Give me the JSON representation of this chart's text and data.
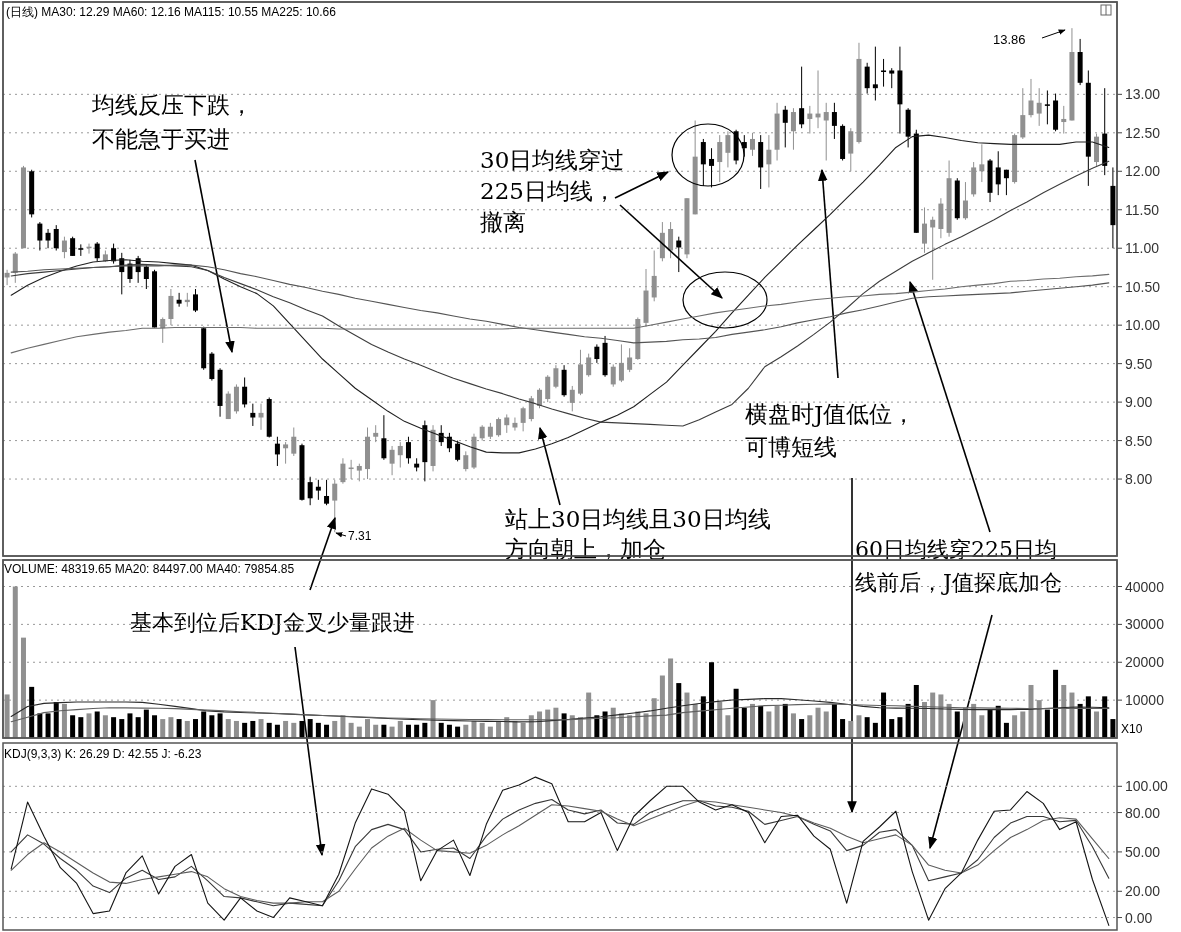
{
  "chart_data": [
    {
      "type": "candlestick",
      "categories": [
        null,
        null,
        null,
        null,
        null,
        null,
        null,
        null,
        null,
        null,
        null,
        null,
        null,
        null,
        null,
        null,
        null,
        null,
        null,
        null,
        null,
        null,
        null,
        null,
        null,
        null,
        null,
        null,
        null,
        null,
        null,
        null,
        null,
        null,
        null,
        null,
        null,
        null,
        null,
        null,
        null,
        null,
        null,
        null,
        null,
        null,
        null,
        null,
        null,
        null,
        null,
        null,
        null,
        null,
        null,
        null,
        null,
        null,
        null,
        null,
        null,
        null,
        null,
        null,
        null,
        null,
        null,
        null,
        null,
        null,
        null,
        null,
        null,
        null,
        null,
        null,
        null,
        null,
        null,
        null,
        null,
        null,
        null,
        null,
        null,
        null,
        null,
        null,
        null,
        null,
        null,
        null,
        null,
        null,
        null,
        null,
        null,
        null,
        null,
        null,
        null,
        null,
        null,
        null,
        null,
        null,
        null,
        null,
        null,
        null,
        null,
        null,
        null,
        null,
        null,
        null,
        null,
        null,
        null,
        null,
        null,
        null,
        null,
        null,
        null,
        null,
        null,
        null,
        null,
        null,
        null,
        null,
        null,
        null,
        null,
        null
      ],
      "ohlc": [
        [
          10.62,
          10.72,
          10.52,
          10.68
        ],
        [
          10.68,
          10.95,
          10.55,
          10.93
        ],
        [
          11.0,
          12.07,
          11.0,
          12.05
        ],
        [
          12.0,
          12.02,
          11.4,
          11.44
        ],
        [
          11.32,
          11.34,
          10.97,
          11.1
        ],
        [
          11.2,
          11.25,
          11.0,
          11.1
        ],
        [
          11.25,
          11.3,
          10.97,
          11.0
        ],
        [
          10.95,
          11.15,
          10.87,
          11.1
        ],
        [
          11.13,
          11.15,
          10.9,
          10.9
        ],
        [
          11.0,
          11.05,
          10.9,
          10.98
        ],
        [
          11.0,
          11.06,
          10.93,
          11.02
        ],
        [
          11.06,
          11.08,
          10.83,
          10.87
        ],
        [
          10.83,
          10.97,
          10.82,
          10.92
        ],
        [
          11.0,
          11.06,
          10.8,
          10.83
        ],
        [
          10.87,
          10.94,
          10.4,
          10.69
        ],
        [
          10.8,
          10.85,
          10.55,
          10.6
        ],
        [
          10.87,
          10.9,
          10.55,
          10.69
        ],
        [
          10.76,
          10.78,
          10.47,
          10.6
        ],
        [
          10.7,
          10.72,
          9.97,
          9.97
        ],
        [
          9.96,
          10.1,
          9.77,
          10.08
        ],
        [
          10.08,
          10.47,
          10.0,
          10.38
        ],
        [
          10.33,
          10.42,
          10.24,
          10.28
        ],
        [
          10.3,
          10.42,
          10.24,
          10.33
        ],
        [
          10.4,
          10.47,
          10.17,
          10.19
        ],
        [
          9.96,
          9.98,
          9.42,
          9.44
        ],
        [
          9.63,
          9.65,
          9.28,
          9.3
        ],
        [
          9.42,
          9.44,
          8.81,
          8.95
        ],
        [
          8.78,
          9.14,
          8.78,
          9.11
        ],
        [
          8.88,
          9.23,
          8.85,
          9.2
        ],
        [
          9.2,
          9.32,
          8.93,
          8.97
        ],
        [
          8.86,
          8.98,
          8.69,
          8.8
        ],
        [
          8.8,
          8.98,
          8.64,
          8.86
        ],
        [
          9.04,
          9.06,
          8.54,
          8.55
        ],
        [
          8.46,
          8.55,
          8.17,
          8.32
        ],
        [
          8.4,
          8.48,
          8.2,
          8.45
        ],
        [
          8.33,
          8.67,
          8.3,
          8.55
        ],
        [
          8.44,
          8.46,
          7.72,
          7.73
        ],
        [
          7.96,
          8.03,
          7.66,
          7.75
        ],
        [
          7.9,
          7.99,
          7.73,
          7.85
        ],
        [
          7.78,
          7.99,
          7.66,
          7.68
        ],
        [
          7.72,
          7.99,
          7.31,
          7.94
        ],
        [
          7.96,
          8.27,
          7.94,
          8.2
        ],
        [
          8.13,
          8.25,
          8.0,
          8.15
        ],
        [
          8.11,
          8.2,
          7.97,
          8.17
        ],
        [
          8.13,
          8.67,
          8.0,
          8.55
        ],
        [
          8.55,
          8.7,
          8.48,
          8.6
        ],
        [
          8.53,
          8.83,
          8.25,
          8.27
        ],
        [
          8.2,
          8.43,
          8.05,
          8.38
        ],
        [
          8.31,
          8.48,
          8.15,
          8.43
        ],
        [
          8.48,
          8.55,
          8.2,
          8.27
        ],
        [
          8.2,
          8.27,
          8.1,
          8.15
        ],
        [
          8.7,
          8.76,
          7.97,
          8.22
        ],
        [
          8.17,
          8.7,
          8.1,
          8.64
        ],
        [
          8.6,
          8.7,
          8.43,
          8.48
        ],
        [
          8.55,
          8.6,
          8.35,
          8.4
        ],
        [
          8.46,
          8.5,
          8.23,
          8.25
        ],
        [
          8.13,
          8.36,
          8.1,
          8.31
        ],
        [
          8.15,
          8.59,
          8.13,
          8.55
        ],
        [
          8.53,
          8.7,
          8.5,
          8.68
        ],
        [
          8.55,
          8.73,
          8.52,
          8.68
        ],
        [
          8.57,
          8.8,
          8.55,
          8.78
        ],
        [
          8.7,
          8.84,
          8.6,
          8.8
        ],
        [
          8.67,
          8.8,
          8.63,
          8.73
        ],
        [
          8.73,
          8.94,
          8.62,
          8.92
        ],
        [
          8.78,
          9.08,
          8.75,
          9.05
        ],
        [
          8.95,
          9.18,
          8.92,
          9.16
        ],
        [
          9.04,
          9.35,
          9.0,
          9.33
        ],
        [
          9.2,
          9.48,
          9.18,
          9.44
        ],
        [
          9.42,
          9.48,
          9.07,
          9.09
        ],
        [
          8.99,
          9.21,
          8.88,
          9.16
        ],
        [
          9.11,
          9.68,
          9.09,
          9.49
        ],
        [
          9.35,
          9.63,
          9.33,
          9.58
        ],
        [
          9.72,
          9.75,
          9.51,
          9.56
        ],
        [
          9.77,
          9.86,
          9.33,
          9.35
        ],
        [
          9.23,
          9.49,
          9.2,
          9.46
        ],
        [
          9.28,
          9.75,
          9.26,
          9.51
        ],
        [
          9.42,
          9.7,
          9.39,
          9.58
        ],
        [
          9.56,
          10.1,
          9.55,
          10.08
        ],
        [
          10.03,
          10.73,
          9.98,
          10.45
        ],
        [
          10.36,
          10.97,
          10.31,
          10.64
        ],
        [
          10.87,
          11.34,
          10.83,
          11.2
        ],
        [
          10.97,
          11.34,
          10.87,
          11.25
        ],
        [
          11.1,
          11.15,
          10.69,
          11.01
        ],
        [
          10.92,
          11.65,
          10.87,
          11.65
        ],
        [
          11.44,
          12.66,
          11.44,
          12.19
        ],
        [
          12.38,
          12.42,
          11.81,
          12.09
        ],
        [
          12.16,
          12.3,
          11.79,
          12.07
        ],
        [
          12.12,
          12.47,
          11.86,
          12.38
        ],
        [
          12.24,
          12.52,
          12.05,
          12.47
        ],
        [
          12.52,
          12.54,
          12.09,
          12.14
        ],
        [
          12.38,
          12.47,
          12.19,
          12.3
        ],
        [
          12.28,
          12.5,
          12.2,
          12.42
        ],
        [
          12.38,
          12.47,
          11.77,
          12.05
        ],
        [
          12.09,
          12.47,
          11.79,
          12.28
        ],
        [
          12.28,
          12.89,
          12.14,
          12.75
        ],
        [
          12.8,
          12.85,
          12.31,
          12.63
        ],
        [
          12.52,
          12.82,
          12.28,
          12.77
        ],
        [
          12.82,
          13.36,
          12.56,
          12.61
        ],
        [
          12.68,
          12.85,
          12.49,
          12.75
        ],
        [
          12.7,
          13.31,
          12.56,
          12.75
        ],
        [
          12.66,
          12.89,
          12.14,
          12.77
        ],
        [
          12.77,
          12.89,
          12.42,
          12.59
        ],
        [
          12.59,
          12.61,
          12.14,
          12.16
        ],
        [
          12.23,
          12.56,
          12.0,
          12.52
        ],
        [
          12.38,
          13.67,
          12.36,
          13.46
        ],
        [
          13.36,
          13.41,
          13.01,
          13.08
        ],
        [
          13.13,
          13.62,
          12.92,
          13.08
        ],
        [
          13.31,
          13.46,
          13.1,
          13.29
        ],
        [
          13.31,
          13.34,
          13.08,
          13.27
        ],
        [
          13.31,
          13.62,
          12.49,
          12.87
        ],
        [
          12.8,
          12.82,
          12.31,
          12.45
        ],
        [
          12.49,
          12.54,
          11.2,
          11.2
        ],
        [
          11.06,
          11.53,
          10.94,
          11.32
        ],
        [
          11.27,
          11.41,
          10.59,
          11.37
        ],
        [
          11.25,
          11.65,
          11.13,
          11.58
        ],
        [
          11.2,
          12.14,
          11.15,
          11.91
        ],
        [
          11.88,
          11.91,
          11.37,
          11.39
        ],
        [
          11.39,
          11.86,
          11.37,
          11.62
        ],
        [
          11.7,
          12.12,
          11.67,
          12.05
        ],
        [
          12.0,
          12.35,
          11.86,
          12.09
        ],
        [
          12.14,
          12.16,
          11.6,
          11.72
        ],
        [
          12.05,
          12.26,
          11.69,
          11.83
        ],
        [
          12.02,
          12.02,
          11.69,
          11.91
        ],
        [
          11.86,
          12.49,
          11.84,
          12.47
        ],
        [
          12.44,
          13.08,
          12.42,
          12.73
        ],
        [
          12.73,
          13.2,
          12.7,
          12.92
        ],
        [
          12.75,
          13.08,
          12.59,
          12.89
        ],
        [
          12.87,
          13.05,
          12.61,
          12.85
        ],
        [
          12.92,
          13.01,
          12.52,
          12.54
        ],
        [
          12.64,
          12.85,
          12.49,
          12.68
        ],
        [
          12.66,
          13.86,
          12.66,
          13.55
        ],
        [
          13.55,
          13.72,
          13.12,
          13.15
        ],
        [
          13.15,
          13.31,
          11.81,
          12.19
        ],
        [
          12.12,
          12.49,
          12.07,
          12.45
        ],
        [
          12.49,
          13.08,
          11.95,
          12.07
        ],
        [
          11.81,
          12.05,
          11.0,
          11.3
        ]
      ],
      "colors": [
        "#909090",
        "#909090",
        "#909090",
        "#000000",
        "#000000",
        "#000000",
        "#000000",
        "#909090",
        "#000000",
        "#000000",
        "#909090",
        "#000000",
        "#909090",
        "#000000",
        "#000000",
        "#000000",
        "#000000",
        "#000000",
        "#000000",
        "#909090",
        "#909090",
        "#000000",
        "#909090",
        "#000000",
        "#000000",
        "#000000",
        "#000000",
        "#909090",
        "#909090",
        "#000000",
        "#000000",
        "#909090",
        "#000000",
        "#000000",
        "#909090",
        "#909090",
        "#000000",
        "#000000",
        "#000000",
        "#000000",
        "#909090",
        "#909090",
        "#909090",
        "#909090",
        "#909090",
        "#909090",
        "#000000",
        "#909090",
        "#909090",
        "#000000",
        "#000000",
        "#000000",
        "#909090",
        "#000000",
        "#000000",
        "#000000",
        "#909090",
        "#909090",
        "#909090",
        "#909090",
        "#909090",
        "#909090",
        "#909090",
        "#909090",
        "#909090",
        "#909090",
        "#909090",
        "#909090",
        "#000000",
        "#909090",
        "#909090",
        "#909090",
        "#000000",
        "#000000",
        "#909090",
        "#909090",
        "#909090",
        "#909090",
        "#909090",
        "#909090",
        "#909090",
        "#909090",
        "#000000",
        "#909090",
        "#909090",
        "#000000",
        "#000000",
        "#909090",
        "#909090",
        "#000000",
        "#000000",
        "#909090",
        "#000000",
        "#909090",
        "#909090",
        "#000000",
        "#909090",
        "#000000",
        "#909090",
        "#909090",
        "#909090",
        "#000000",
        "#000000",
        "#909090",
        "#909090",
        "#000000",
        "#000000",
        "#000000",
        "#000000",
        "#000000",
        "#000000",
        "#000000",
        "#909090",
        "#909090",
        "#909090",
        "#909090",
        "#000000",
        "#909090",
        "#909090",
        "#909090",
        "#000000",
        "#000000",
        "#000000",
        "#909090",
        "#909090",
        "#909090",
        "#909090",
        "#000000",
        "#000000",
        "#909090",
        "#909090",
        "#000000",
        "#000000",
        "#909090",
        "#000000",
        "#000000"
      ],
      "ylim": [
        7.0,
        14.2
      ],
      "yticks": [
        {
          "value": 8,
          "label": "8.00"
        },
        {
          "value": 8.5,
          "label": "8.50"
        },
        {
          "value": 9,
          "label": "9.00"
        },
        {
          "value": 9.5,
          "label": "9.50"
        },
        {
          "value": 10,
          "label": "10.00"
        },
        {
          "value": 10.5,
          "label": "10.50"
        },
        {
          "value": 11,
          "label": "11.00"
        },
        {
          "value": 11.5,
          "label": "11.50"
        },
        {
          "value": 12,
          "label": "12.00"
        },
        {
          "value": 12.5,
          "label": "12.50"
        },
        {
          "value": 13,
          "label": "13.00"
        }
      ],
      "grid": "y",
      "tick_labels": "y",
      "annotations": [
        "(日线) MA30: 12.29 MA60: 12.16 MA115: 10.55 MA225: 10.66",
        "均线反压下跌，不能急于买进",
        "30日均线穿过225日均线，撤离",
        "站上30日均线且30日均线方向朝上，加仓",
        "横盘时J值低位，可博短线",
        "60日均线穿225日均线前后，J值探底加仓",
        "基本到位后KDJ金叉少量跟进",
        "7.31",
        "13.86"
      ]
    },
    {
      "type": "line",
      "categories": [
        null,
        null,
        null,
        null,
        null,
        null,
        null,
        null,
        null,
        null,
        null,
        null,
        null,
        null,
        null,
        null,
        null,
        null,
        null,
        null,
        null,
        null,
        null,
        null,
        null,
        null,
        null,
        null,
        null,
        null,
        null,
        null,
        null,
        null,
        null,
        null,
        null,
        null,
        null,
        null,
        null,
        null,
        null,
        null,
        null,
        null,
        null,
        null,
        null,
        null,
        null,
        null,
        null,
        null,
        null,
        null,
        null,
        null,
        null,
        null,
        null,
        null,
        null,
        null,
        null,
        null,
        null,
        null
      ],
      "series": [
        {
          "color": "#202020",
          "values": [
            10.39,
            10.52,
            10.62,
            10.7,
            10.77,
            10.82,
            10.84,
            10.85,
            10.83,
            10.82,
            10.8,
            10.78,
            10.71,
            10.6,
            10.5,
            10.41,
            10.25,
            10.02,
            9.79,
            9.56,
            9.37,
            9.18,
            9.03,
            8.88,
            8.75,
            8.66,
            8.58,
            8.5,
            8.42,
            8.35,
            8.34,
            8.34,
            8.39,
            8.46,
            8.54,
            8.64,
            8.74,
            8.83,
            8.94,
            9.1,
            9.26,
            9.48,
            9.7,
            9.92,
            10.16,
            10.39,
            10.62,
            10.83,
            11.04,
            11.24,
            11.44,
            11.65,
            11.86,
            12.08,
            12.31,
            12.45,
            12.47,
            12.44,
            12.4,
            12.37,
            12.36,
            12.35,
            12.35,
            12.35,
            12.35,
            12.38,
            12.38,
            12.31
          ]
        },
        {
          "color": "#3c3c3c",
          "values": [
            10.64,
            10.67,
            10.69,
            10.71,
            10.73,
            10.75,
            10.76,
            10.78,
            10.79,
            10.78,
            10.77,
            10.76,
            10.71,
            10.62,
            10.54,
            10.46,
            10.37,
            10.29,
            10.2,
            10.12,
            9.99,
            9.87,
            9.75,
            9.65,
            9.56,
            9.48,
            9.39,
            9.31,
            9.24,
            9.17,
            9.11,
            9.04,
            8.98,
            8.91,
            8.85,
            8.79,
            8.74,
            8.73,
            8.72,
            8.71,
            8.7,
            8.69,
            8.77,
            8.87,
            8.97,
            9.18,
            9.46,
            9.59,
            9.73,
            9.88,
            10.04,
            10.22,
            10.41,
            10.57,
            10.7,
            10.83,
            10.94,
            11.05,
            11.15,
            11.26,
            11.37,
            11.49,
            11.6,
            11.72,
            11.83,
            11.94,
            12.04,
            12.13
          ]
        },
        {
          "color": "#555555",
          "values": [
            10.69,
            10.7,
            10.72,
            10.73,
            10.74,
            10.75,
            10.76,
            10.77,
            10.77,
            10.77,
            10.78,
            10.78,
            10.76,
            10.72,
            10.67,
            10.63,
            10.58,
            10.53,
            10.49,
            10.44,
            10.4,
            10.35,
            10.31,
            10.27,
            10.23,
            10.19,
            10.16,
            10.12,
            10.08,
            10.05,
            10.01,
            9.97,
            9.94,
            9.91,
            9.88,
            9.85,
            9.83,
            9.8,
            9.77,
            9.78,
            9.79,
            9.81,
            9.82,
            9.84,
            9.88,
            9.91,
            9.94,
            9.98,
            10.03,
            10.07,
            10.11,
            10.16,
            10.2,
            10.25,
            10.3,
            10.35,
            10.37,
            10.38,
            10.39,
            10.4,
            10.41,
            10.42,
            10.44,
            10.46,
            10.48,
            10.5,
            10.52,
            10.55
          ]
        },
        {
          "color": "#6c6c6c",
          "values": [
            9.64,
            9.7,
            9.75,
            9.8,
            9.85,
            9.88,
            9.91,
            9.93,
            9.96,
            9.96,
            9.97,
            9.97,
            9.97,
            9.97,
            9.97,
            9.96,
            9.96,
            9.96,
            9.96,
            9.96,
            9.95,
            9.95,
            9.95,
            9.95,
            9.95,
            9.95,
            9.95,
            9.95,
            9.95,
            9.95,
            9.95,
            9.96,
            9.96,
            9.96,
            9.96,
            9.96,
            9.96,
            9.96,
            9.96,
            10.0,
            10.04,
            10.08,
            10.12,
            10.16,
            10.19,
            10.22,
            10.25,
            10.27,
            10.3,
            10.33,
            10.35,
            10.37,
            10.38,
            10.4,
            10.41,
            10.43,
            10.45,
            10.47,
            10.5,
            10.52,
            10.54,
            10.57,
            10.58,
            10.6,
            10.61,
            10.63,
            10.64,
            10.66
          ]
        }
      ],
      "ylim": [
        7.0,
        14.2
      ],
      "tick_labels": false
    },
    {
      "type": "bar",
      "categories": [
        null,
        null,
        null,
        null,
        null,
        null,
        null,
        null,
        null,
        null,
        null,
        null,
        null,
        null,
        null,
        null,
        null,
        null,
        null,
        null,
        null,
        null,
        null,
        null,
        null,
        null,
        null,
        null,
        null,
        null,
        null,
        null,
        null,
        null,
        null,
        null,
        null,
        null,
        null,
        null,
        null,
        null,
        null,
        null,
        null,
        null,
        null,
        null,
        null,
        null,
        null,
        null,
        null,
        null,
        null,
        null,
        null,
        null,
        null,
        null,
        null,
        null,
        null,
        null,
        null,
        null,
        null,
        null,
        null,
        null,
        null,
        null,
        null,
        null,
        null,
        null,
        null,
        null,
        null,
        null,
        null,
        null,
        null,
        null,
        null,
        null,
        null,
        null,
        null,
        null,
        null,
        null,
        null,
        null,
        null,
        null,
        null,
        null,
        null,
        null,
        null,
        null,
        null,
        null,
        null,
        null,
        null,
        null,
        null,
        null,
        null,
        null,
        null,
        null,
        null,
        null,
        null,
        null,
        null,
        null,
        null,
        null,
        null,
        null,
        null,
        null,
        null,
        null,
        null,
        null,
        null,
        null,
        null,
        null,
        null,
        null
      ],
      "values": [
        11500,
        40000,
        26500,
        13500,
        6500,
        6500,
        9500,
        9000,
        6000,
        5500,
        6500,
        7000,
        6000,
        5500,
        5000,
        6500,
        5500,
        7500,
        6000,
        5000,
        5500,
        5000,
        4500,
        5000,
        7000,
        6000,
        6500,
        5000,
        4500,
        4000,
        4500,
        5000,
        4000,
        3500,
        4500,
        4000,
        4500,
        5000,
        4000,
        3500,
        4500,
        6000,
        4000,
        3000,
        5000,
        3500,
        3500,
        3000,
        4500,
        3500,
        3500,
        4000,
        10000,
        4000,
        3500,
        3000,
        3500,
        4500,
        4000,
        3000,
        4500,
        5500,
        4500,
        4000,
        6000,
        7000,
        7500,
        8000,
        6500,
        6000,
        5500,
        12000,
        6000,
        7000,
        8000,
        6500,
        6000,
        7000,
        6500,
        10500,
        16500,
        21000,
        14500,
        12000,
        9000,
        11000,
        20000,
        9500,
        6000,
        13000,
        8000,
        9000,
        8500,
        7000,
        8500,
        9000,
        6500,
        5000,
        6000,
        8000,
        7000,
        9000,
        5000,
        4500,
        6000,
        5500,
        4000,
        12000,
        5000,
        5500,
        9000,
        14000,
        9500,
        12000,
        11500,
        9000,
        7000,
        8000,
        9000,
        6000,
        7500,
        8500,
        4000,
        6000,
        7000,
        14000,
        10000,
        7500,
        18000,
        14000,
        12000,
        9000,
        11000,
        7000,
        11000,
        5000
      ],
      "colors": [
        "#909090",
        "#909090",
        "#909090",
        "#000000",
        "#000000",
        "#000000",
        "#000000",
        "#909090",
        "#000000",
        "#000000",
        "#909090",
        "#000000",
        "#909090",
        "#000000",
        "#000000",
        "#000000",
        "#000000",
        "#000000",
        "#000000",
        "#909090",
        "#909090",
        "#000000",
        "#909090",
        "#000000",
        "#000000",
        "#000000",
        "#000000",
        "#909090",
        "#909090",
        "#000000",
        "#000000",
        "#909090",
        "#000000",
        "#000000",
        "#909090",
        "#909090",
        "#000000",
        "#000000",
        "#000000",
        "#000000",
        "#909090",
        "#909090",
        "#909090",
        "#909090",
        "#909090",
        "#909090",
        "#000000",
        "#909090",
        "#909090",
        "#000000",
        "#000000",
        "#000000",
        "#909090",
        "#000000",
        "#000000",
        "#000000",
        "#909090",
        "#909090",
        "#909090",
        "#909090",
        "#909090",
        "#909090",
        "#909090",
        "#909090",
        "#909090",
        "#909090",
        "#909090",
        "#909090",
        "#000000",
        "#909090",
        "#909090",
        "#909090",
        "#000000",
        "#000000",
        "#909090",
        "#909090",
        "#909090",
        "#909090",
        "#909090",
        "#909090",
        "#909090",
        "#909090",
        "#000000",
        "#909090",
        "#909090",
        "#000000",
        "#000000",
        "#909090",
        "#909090",
        "#000000",
        "#000000",
        "#909090",
        "#000000",
        "#909090",
        "#909090",
        "#000000",
        "#909090",
        "#000000",
        "#909090",
        "#909090",
        "#909090",
        "#000000",
        "#000000",
        "#909090",
        "#909090",
        "#000000",
        "#000000",
        "#000000",
        "#000000",
        "#000000",
        "#000000",
        "#000000",
        "#909090",
        "#909090",
        "#909090",
        "#909090",
        "#000000",
        "#909090",
        "#909090",
        "#909090",
        "#000000",
        "#000000",
        "#000000",
        "#909090",
        "#909090",
        "#909090",
        "#909090",
        "#000000",
        "#000000",
        "#909090",
        "#909090",
        "#000000",
        "#000000",
        "#909090",
        "#000000",
        "#000000"
      ],
      "ylim": [
        0,
        47000
      ],
      "yticks": [
        10000,
        20000,
        30000,
        40000
      ],
      "grid": "y",
      "tick_labels": "y",
      "annotations": [
        "VOLUME: 48319.65 MA20: 84497.00 MA40: 79854.85",
        "X10"
      ]
    },
    {
      "type": "line",
      "categories": [
        null,
        null,
        null,
        null,
        null,
        null,
        null,
        null,
        null,
        null,
        null,
        null,
        null,
        null,
        null,
        null,
        null,
        null,
        null,
        null,
        null,
        null,
        null,
        null,
        null,
        null,
        null,
        null,
        null,
        null,
        null,
        null,
        null,
        null,
        null,
        null,
        null,
        null,
        null,
        null,
        null,
        null,
        null,
        null,
        null,
        null,
        null,
        null,
        null,
        null,
        null,
        null,
        null,
        null,
        null,
        null,
        null,
        null,
        null,
        null,
        null,
        null,
        null,
        null,
        null,
        null,
        null,
        null
      ],
      "series": [
        {
          "color": "#2a2a2a",
          "values": [
            5700,
            8300,
            9150,
            9350,
            9500,
            9500,
            9500,
            9500,
            9400,
            8900,
            8350,
            7750,
            7150,
            6900,
            6750,
            6600,
            6450,
            6300,
            6100,
            5950,
            5750,
            5550,
            5350,
            5150,
            4950,
            4800,
            4700,
            4600,
            4500,
            4400,
            4350,
            4250,
            4300,
            4600,
            4900,
            5250,
            5600,
            6100,
            6600,
            7150,
            7850,
            8500,
            9100,
            9600,
            10050,
            10200,
            10400,
            10400,
            10100,
            9750,
            9400,
            8900,
            8350,
            8000,
            7900,
            7850,
            7800,
            7650,
            7550,
            7500,
            7500,
            7500,
            7550,
            7750,
            8000,
            8200,
            8100,
            8000
          ]
        },
        {
          "color": "#606060",
          "values": [
            4300,
            5500,
            6700,
            7200,
            7500,
            7800,
            8000,
            7950,
            7900,
            7850,
            7750,
            7550,
            7350,
            7150,
            6950,
            6750,
            6550,
            6350,
            6150,
            5950,
            5800,
            5600,
            5450,
            5300,
            5200,
            5100,
            5000,
            4950,
            4900,
            4850,
            4800,
            4800,
            4800,
            4800,
            4850,
            5000,
            5200,
            5350,
            5600,
            5850,
            6050,
            6700,
            7100,
            7450,
            7850,
            8200,
            8550,
            8650,
            8800,
            8900,
            9000,
            8850,
            8700,
            8600,
            8500,
            8350,
            8250,
            8100,
            8000,
            7950,
            7900,
            7850,
            7800,
            7800,
            7800,
            7800,
            7800,
            7800
          ]
        }
      ],
      "ylim": [
        0,
        47000
      ],
      "tick_labels": false
    },
    {
      "type": "line",
      "categories": [
        null,
        null,
        null,
        null,
        null,
        null,
        null,
        null,
        null,
        null,
        null,
        null,
        null,
        null,
        null,
        null,
        null,
        null,
        null,
        null,
        null,
        null,
        null,
        null,
        null,
        null,
        null,
        null,
        null,
        null,
        null,
        null,
        null,
        null,
        null,
        null,
        null,
        null,
        null,
        null,
        null,
        null,
        null,
        null,
        null,
        null,
        null,
        null,
        null,
        null,
        null,
        null,
        null,
        null,
        null,
        null,
        null,
        null,
        null,
        null,
        null,
        null,
        null,
        null,
        null,
        null,
        null,
        null
      ],
      "series": [
        {
          "color": "#383838",
          "values": [
            50,
            63,
            56,
            45,
            36,
            24,
            19,
            30,
            36,
            29,
            31,
            39,
            28,
            16,
            15,
            12,
            9,
            11,
            10,
            9,
            28,
            54,
            67,
            71,
            67,
            50,
            52,
            53,
            45,
            62,
            75,
            82,
            87,
            90,
            82,
            79,
            82,
            72,
            71,
            80,
            85,
            89,
            89,
            85,
            84,
            81,
            71,
            74,
            77,
            71,
            66,
            51,
            55,
            65,
            67,
            55,
            28,
            31,
            34,
            44,
            61,
            72,
            77,
            77,
            73,
            74,
            54,
            30
          ]
        },
        {
          "color": "#5c5c5c",
          "values": [
            36,
            48,
            57,
            50,
            42,
            34,
            27,
            26,
            29,
            31,
            33,
            35,
            31,
            22,
            16,
            13,
            11,
            11,
            12,
            12,
            20,
            37,
            53,
            62,
            68,
            59,
            51,
            50,
            49,
            55,
            63,
            70,
            78,
            86,
            85,
            83,
            81,
            75,
            70,
            75,
            80,
            85,
            89,
            88,
            86,
            84,
            82,
            80,
            77,
            72,
            68,
            62,
            57,
            60,
            63,
            55,
            40,
            36,
            34,
            40,
            51,
            61,
            67,
            74,
            76,
            75,
            60,
            45
          ]
        },
        {
          "color": "#141414",
          "values": [
            37,
            88,
            62,
            38,
            26,
            3,
            5,
            34,
            47,
            18,
            39,
            48,
            11,
            -2,
            15,
            5,
            0,
            15,
            12,
            9,
            33,
            72,
            98,
            94,
            81,
            28,
            51,
            59,
            32,
            71,
            97,
            101,
            107,
            102,
            73,
            73,
            80,
            51,
            77,
            89,
            100,
            100,
            88,
            82,
            86,
            80,
            57,
            77,
            78,
            62,
            52,
            11,
            58,
            69,
            81,
            35,
            -2,
            22,
            34,
            59,
            81,
            82,
            96,
            87,
            67,
            73,
            29,
            -6
          ]
        }
      ],
      "ylim": [
        -9.5,
        133
      ],
      "yticks": [
        {
          "value": 0,
          "label": "0.00"
        },
        {
          "value": 20,
          "label": "20.00"
        },
        {
          "value": 50,
          "label": "50.00"
        },
        {
          "value": 80,
          "label": "80.00"
        },
        {
          "value": 100,
          "label": "100.00"
        }
      ],
      "grid": "y",
      "tick_labels": "y",
      "annotations": [
        "KDJ(9,3,3) K: 26.29 D: 42.55 J: -6.23"
      ]
    }
  ]
}
